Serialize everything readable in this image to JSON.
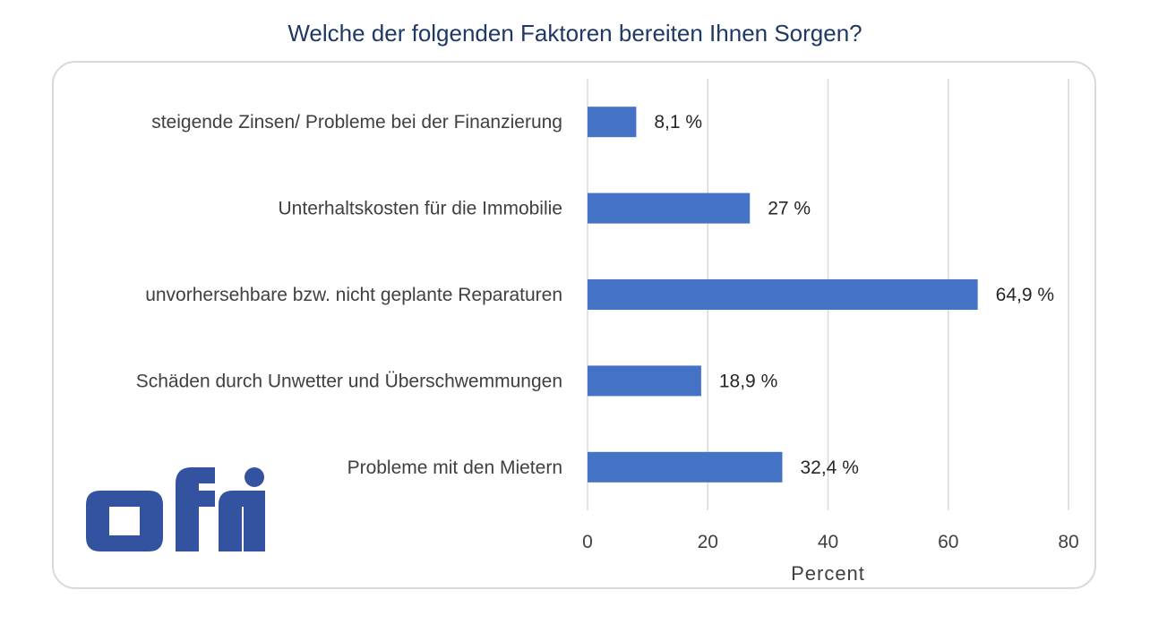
{
  "chart_data": {
    "type": "bar",
    "orientation": "horizontal",
    "title": "Welche der folgenden Faktoren bereiten Ihnen Sorgen?",
    "categories": [
      "steigende Zinsen/ Probleme bei der Finanzierung",
      "Unterhaltskosten für die Immobilie",
      "unvorhersehbare bzw. nicht geplante  Reparaturen",
      "Schäden durch Unwetter und Überschwemmungen",
      "Probleme mit den Mietern"
    ],
    "values": [
      8.1,
      27,
      64.9,
      18.9,
      32.4
    ],
    "value_labels": [
      "8,1 %",
      "27 %",
      "64,9 %",
      "18,9 %",
      "32,4 %"
    ],
    "xlabel": "Percent",
    "ylabel": "",
    "xlim": [
      0,
      80
    ],
    "xticks": [
      0,
      20,
      40,
      60,
      80
    ],
    "grid": "vertical",
    "bar_color": "#4472c4",
    "grid_color": "#d9d9d9"
  },
  "logo": {
    "text": "ofri",
    "color": "#3353a1"
  },
  "colors": {
    "title": "#1f3864",
    "frame": "#d9d9d9"
  }
}
